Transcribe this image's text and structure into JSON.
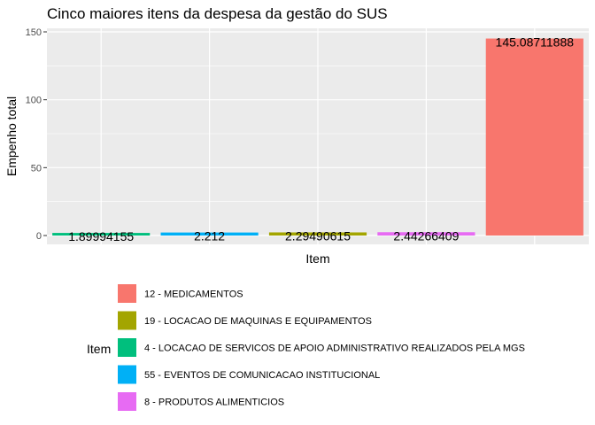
{
  "chart_data": {
    "type": "bar",
    "title": "Cinco maiores itens da despesa da gestão do SUS",
    "xlabel": "Item",
    "ylabel": "Empenho total",
    "ylim": [
      0,
      150
    ],
    "yticks": [
      0,
      50,
      100,
      150
    ],
    "grid": true,
    "legend_position": "bottom",
    "legend_title": "Item",
    "bars": [
      {
        "item": "4 - LOCACAO DE SERVICOS DE APOIO ADMINISTRATIVO REALIZADOS PELA MGS",
        "value": 1.89994155,
        "label": "1.89994155",
        "color": "#00BF7D"
      },
      {
        "item": "55 - EVENTOS DE COMUNICACAO INSTITUCIONAL",
        "value": 2.212,
        "label": "2.212",
        "color": "#00B0F6"
      },
      {
        "item": "19 - LOCACAO DE MAQUINAS E EQUIPAMENTOS",
        "value": 2.29490615,
        "label": "2.29490615",
        "color": "#A3A500"
      },
      {
        "item": "8 - PRODUTOS ALIMENTICIOS",
        "value": 2.44266409,
        "label": "2.44266409",
        "color": "#E76BF3"
      },
      {
        "item": "12 - MEDICAMENTOS",
        "value": 145.08711888,
        "label": "145.08711888",
        "color": "#F8766D"
      }
    ],
    "legend": [
      {
        "label": "12 - MEDICAMENTOS",
        "color": "#F8766D"
      },
      {
        "label": "19 - LOCACAO DE MAQUINAS E EQUIPAMENTOS",
        "color": "#A3A500"
      },
      {
        "label": "4 - LOCACAO DE SERVICOS DE APOIO ADMINISTRATIVO REALIZADOS PELA MGS",
        "color": "#00BF7D"
      },
      {
        "label": "55 - EVENTOS DE COMUNICACAO INSTITUCIONAL",
        "color": "#00B0F6"
      },
      {
        "label": "8 - PRODUTOS ALIMENTICIOS",
        "color": "#E76BF3"
      }
    ],
    "panel_background": "#EBEBEB",
    "gridline_color": "#FFFFFF"
  }
}
